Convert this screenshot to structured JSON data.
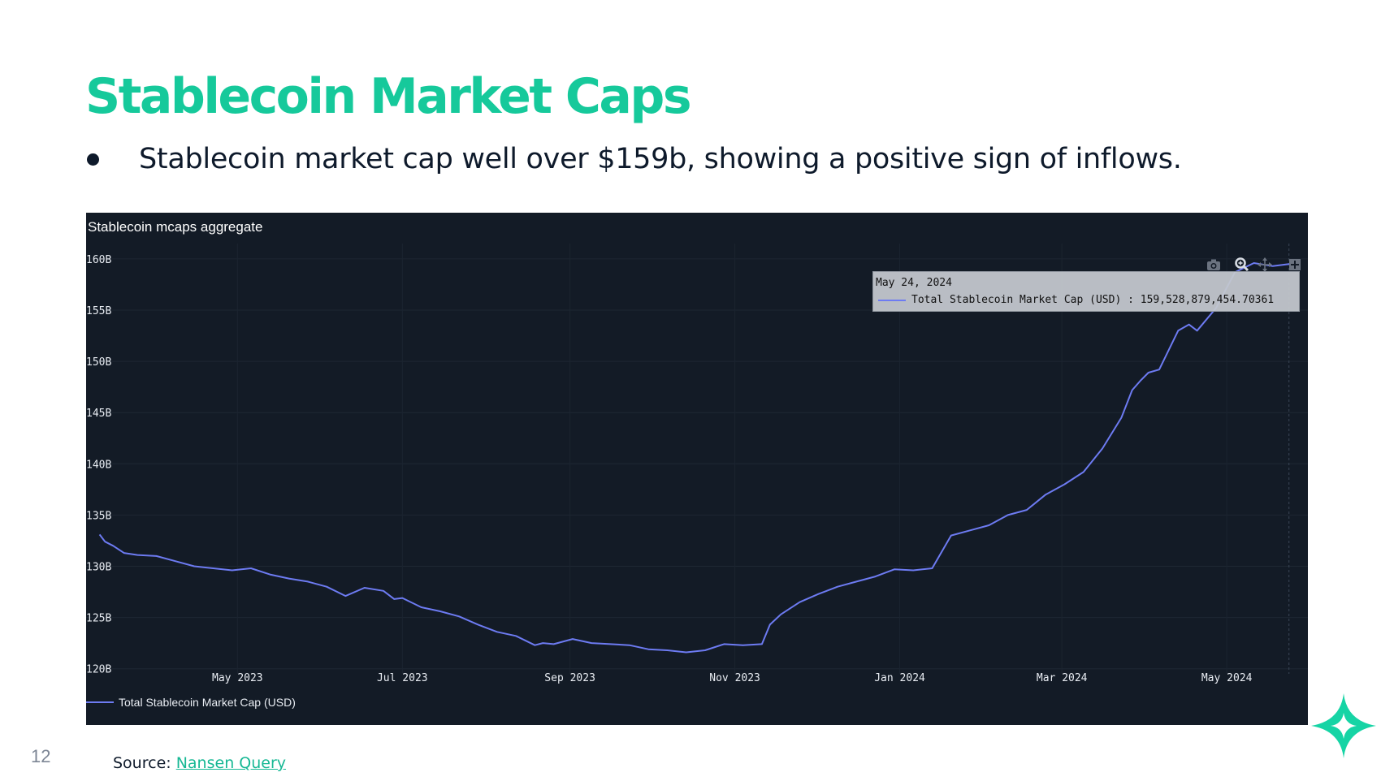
{
  "slide": {
    "title": "Stablecoin Market Caps",
    "bullet": "Stablecoin market cap well over $159b, showing a positive sign of inflows.",
    "page_number": "12",
    "source_label": "Source: ",
    "source_link_text": "Nansen Query"
  },
  "colors": {
    "accent": "#16c99b",
    "chart_bg": "#131b26",
    "line": "#6d7bf2",
    "text_dark": "#0e1a2b"
  },
  "modebar_icons": [
    "camera-icon",
    "zoom-icon",
    "pan-icon",
    "autoscale-icon"
  ],
  "tooltip": {
    "date": "May 24, 2024",
    "text": "Total Stablecoin Market Cap (USD) : 159,528,879,454.70361"
  },
  "chart_data": {
    "type": "line",
    "title": "Stablecoin mcaps aggregate",
    "x_tick_labels": [
      "May 2023",
      "Jul 2023",
      "Sep 2023",
      "Nov 2023",
      "Jan 2024",
      "Mar 2024",
      "May 2024"
    ],
    "x_tick_dates": [
      "2023-05-01",
      "2023-07-01",
      "2023-09-01",
      "2023-11-01",
      "2024-01-01",
      "2024-03-01",
      "2024-05-01"
    ],
    "xlim": [
      "2023-03-06",
      "2024-05-31"
    ],
    "y_tick_labels": [
      "120B",
      "125B",
      "130B",
      "135B",
      "140B",
      "145B",
      "150B",
      "155B",
      "160B"
    ],
    "y_tick_values": [
      120,
      125,
      130,
      135,
      140,
      145,
      150,
      155,
      160
    ],
    "ylim": [
      119.5,
      161.5
    ],
    "y_unit": "B",
    "grid": true,
    "legend_position": "bottom-left",
    "series": [
      {
        "name": "Total Stablecoin Market Cap (USD)",
        "x": [
          "2023-03-11",
          "2023-03-13",
          "2023-03-16",
          "2023-03-20",
          "2023-03-25",
          "2023-04-01",
          "2023-04-08",
          "2023-04-15",
          "2023-04-22",
          "2023-04-29",
          "2023-05-06",
          "2023-05-13",
          "2023-05-20",
          "2023-05-27",
          "2023-06-03",
          "2023-06-10",
          "2023-06-17",
          "2023-06-24",
          "2023-06-28",
          "2023-07-01",
          "2023-07-08",
          "2023-07-15",
          "2023-07-22",
          "2023-07-29",
          "2023-08-05",
          "2023-08-12",
          "2023-08-19",
          "2023-08-22",
          "2023-08-26",
          "2023-09-02",
          "2023-09-09",
          "2023-09-16",
          "2023-09-23",
          "2023-09-30",
          "2023-10-07",
          "2023-10-14",
          "2023-10-21",
          "2023-10-28",
          "2023-11-04",
          "2023-11-11",
          "2023-11-14",
          "2023-11-18",
          "2023-11-25",
          "2023-12-02",
          "2023-12-09",
          "2023-12-16",
          "2023-12-23",
          "2023-12-30",
          "2024-01-06",
          "2024-01-13",
          "2024-01-20",
          "2024-01-27",
          "2024-02-03",
          "2024-02-10",
          "2024-02-17",
          "2024-02-24",
          "2024-03-02",
          "2024-03-09",
          "2024-03-16",
          "2024-03-23",
          "2024-03-27",
          "2024-03-30",
          "2024-04-02",
          "2024-04-06",
          "2024-04-13",
          "2024-04-17",
          "2024-04-20",
          "2024-04-27",
          "2024-05-04",
          "2024-05-11",
          "2024-05-18",
          "2024-05-24",
          "2024-05-28"
        ],
        "y": [
          133.1,
          132.4,
          132.0,
          131.3,
          131.1,
          131.0,
          130.5,
          130.0,
          129.8,
          129.6,
          129.8,
          129.2,
          128.8,
          128.5,
          128.0,
          127.1,
          127.9,
          127.6,
          126.8,
          126.9,
          126.0,
          125.6,
          125.1,
          124.3,
          123.6,
          123.2,
          122.3,
          122.5,
          122.4,
          122.9,
          122.5,
          122.4,
          122.3,
          121.9,
          121.8,
          121.6,
          121.8,
          122.4,
          122.3,
          122.4,
          124.3,
          125.3,
          126.5,
          127.3,
          128.0,
          128.5,
          129.0,
          129.7,
          129.6,
          129.8,
          133.0,
          133.5,
          134.0,
          135.0,
          135.5,
          137.0,
          138.0,
          139.2,
          141.5,
          144.5,
          147.2,
          148.1,
          148.9,
          149.2,
          153.0,
          153.6,
          153.0,
          155.2,
          158.7,
          159.6,
          159.3,
          159.5,
          159.2
        ]
      }
    ]
  }
}
